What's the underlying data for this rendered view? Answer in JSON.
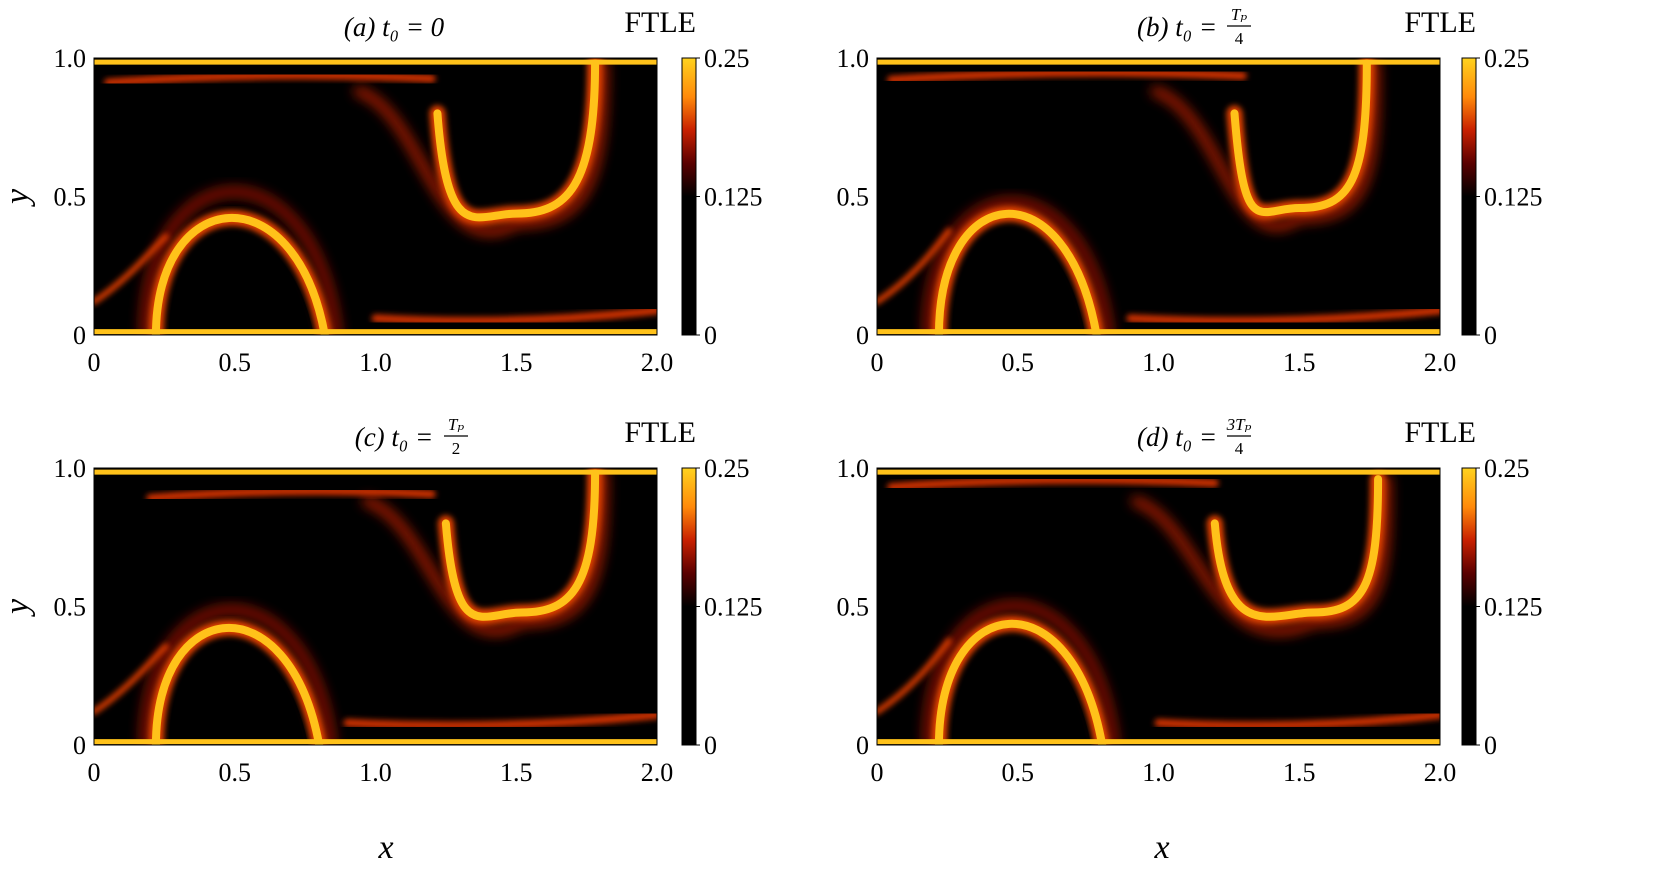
{
  "chart_data": [
    {
      "type": "heatmap",
      "panel": "(a)",
      "title": "(a) t₀ = 0",
      "title_parts": {
        "label": "(a)",
        "expr": "t₀ = 0"
      },
      "colorbar": {
        "title": "FTLE",
        "ticks": [
          "0",
          "0.125",
          "0.25"
        ],
        "range": [
          0,
          0.25
        ]
      },
      "xlabel": "",
      "ylabel": "y",
      "xlim": [
        0,
        2.0
      ],
      "ylim": [
        0,
        1.0
      ],
      "xticks": [
        "0",
        "0.5",
        "1.0",
        "1.5",
        "2.0"
      ],
      "yticks": [
        "0",
        "0.5",
        "1.0"
      ],
      "ridges": [
        {
          "kind": "arch",
          "cx": 0.5,
          "top": 0.5,
          "left": 0.22,
          "right": 0.82,
          "halo": 0.6
        },
        {
          "kind": "bowl",
          "cx": 1.5,
          "bottom": 0.46,
          "left": 1.22,
          "right": 1.78,
          "top": 0.98
        },
        {
          "kind": "top-band",
          "y": 0.94,
          "x0": 0.05,
          "x1": 1.2
        },
        {
          "kind": "bottom-band",
          "y": 0.06,
          "x0": 1.0,
          "x1": 2.0
        }
      ]
    },
    {
      "type": "heatmap",
      "panel": "(b)",
      "title": "(b) t₀ = Tₚ/4",
      "title_parts": {
        "label": "(b)",
        "expr": "t₀ = ",
        "num": "Tₚ",
        "den": "4"
      },
      "colorbar": {
        "title": "FTLE",
        "ticks": [
          "0",
          "0.125",
          "0.25"
        ],
        "range": [
          0,
          0.25
        ]
      },
      "xlabel": "",
      "ylabel": "",
      "xlim": [
        0,
        2.0
      ],
      "ylim": [
        0,
        1.0
      ],
      "xticks": [
        "0",
        "0.5",
        "1.0",
        "1.5",
        "2.0"
      ],
      "yticks": [
        "0",
        "0.5",
        "1.0"
      ],
      "ridges": [
        {
          "kind": "arch",
          "cx": 0.5,
          "top": 0.52,
          "left": 0.22,
          "right": 0.78,
          "halo": 0.55
        },
        {
          "kind": "bowl",
          "cx": 1.5,
          "bottom": 0.48,
          "left": 1.27,
          "right": 1.74,
          "top": 0.98
        },
        {
          "kind": "top-band",
          "y": 0.95,
          "x0": 0.05,
          "x1": 1.3
        },
        {
          "kind": "bottom-band",
          "y": 0.06,
          "x0": 0.9,
          "x1": 2.0
        }
      ]
    },
    {
      "type": "heatmap",
      "panel": "(c)",
      "title": "(c) t₀ = Tₚ/2",
      "title_parts": {
        "label": "(c)",
        "expr": "t₀ = ",
        "num": "Tₚ",
        "den": "2"
      },
      "colorbar": {
        "title": "FTLE",
        "ticks": [
          "0",
          "0.125",
          "0.25"
        ],
        "range": [
          0,
          0.25
        ]
      },
      "xlabel": "",
      "ylabel": "y",
      "xlim": [
        0,
        2.0
      ],
      "ylim": [
        0,
        1.0
      ],
      "xticks": [
        "0",
        "0.5",
        "1.0",
        "1.5",
        "2.0"
      ],
      "yticks": [
        "0",
        "0.5",
        "1.0"
      ],
      "ridges": [
        {
          "kind": "arch",
          "cx": 0.5,
          "top": 0.5,
          "left": 0.22,
          "right": 0.8,
          "halo": 0.56
        },
        {
          "kind": "bowl",
          "cx": 1.52,
          "bottom": 0.5,
          "left": 1.25,
          "right": 1.78,
          "top": 0.98
        },
        {
          "kind": "top-band",
          "y": 0.92,
          "x0": 0.2,
          "x1": 1.2
        },
        {
          "kind": "bottom-band",
          "y": 0.08,
          "x0": 0.9,
          "x1": 2.0
        }
      ]
    },
    {
      "type": "heatmap",
      "panel": "(d)",
      "title": "(d) t₀ = 3Tₚ/4",
      "title_parts": {
        "label": "(d)",
        "expr": "t₀ = ",
        "num": "3Tₚ",
        "den": "4"
      },
      "colorbar": {
        "title": "FTLE",
        "ticks": [
          "0",
          "0.125",
          "0.25"
        ],
        "range": [
          0,
          0.25
        ]
      },
      "xlabel": "",
      "ylabel": "",
      "xlim": [
        0,
        2.0
      ],
      "ylim": [
        0,
        1.0
      ],
      "xticks": [
        "0",
        "0.5",
        "1.0",
        "1.5",
        "2.0"
      ],
      "yticks": [
        "0",
        "0.5",
        "1.0"
      ],
      "ridges": [
        {
          "kind": "arch",
          "cx": 0.5,
          "top": 0.52,
          "left": 0.22,
          "right": 0.8,
          "halo": 0.58
        },
        {
          "kind": "bowl",
          "cx": 1.55,
          "bottom": 0.5,
          "left": 1.2,
          "right": 1.78,
          "top": 0.96
        },
        {
          "kind": "top-band",
          "y": 0.96,
          "x0": 0.05,
          "x1": 1.2
        },
        {
          "kind": "bottom-band",
          "y": 0.08,
          "x0": 1.0,
          "x1": 2.0
        }
      ]
    }
  ],
  "figure": {
    "xlabel": "x",
    "colormap": [
      "#000000",
      "#3a0000",
      "#a31000",
      "#e23a00",
      "#ff9a10",
      "#ffd21e",
      "#ffe93a"
    ]
  }
}
